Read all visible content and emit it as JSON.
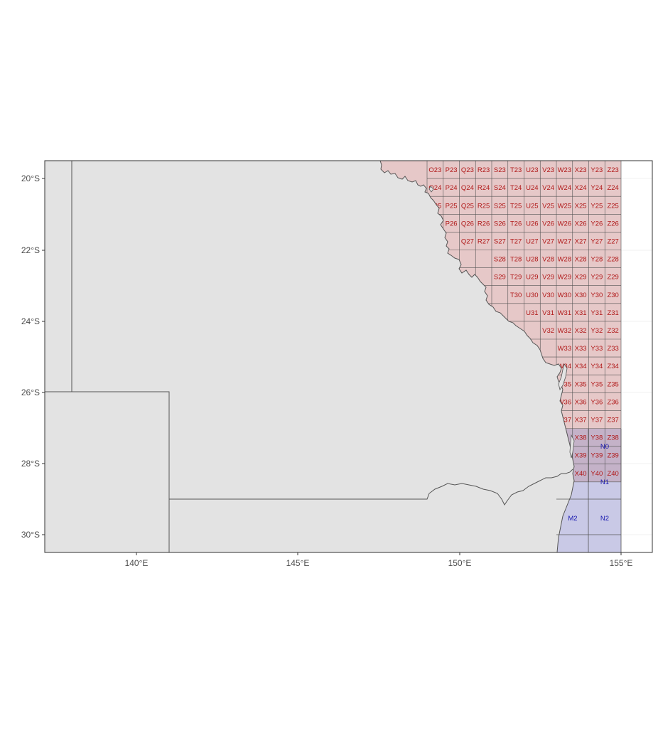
{
  "map": {
    "x_ticks": [
      "140°E",
      "145°E",
      "150°E",
      "155°E"
    ],
    "y_ticks": [
      "20°S",
      "22°S",
      "24°S",
      "26°S",
      "28°S",
      "30°S"
    ],
    "colors": {
      "land": "#e3e3e3",
      "coast": "#555555",
      "grid_red_fill": "#e6b8b8",
      "grid_red_text": "#b01818",
      "grid_blue_fill": "#b8b8e6",
      "grid_blue_text": "#1818b0",
      "panel_background": "#ffffff",
      "gridline": "#ebebeb"
    },
    "red_grid": {
      "columns": [
        "O",
        "P",
        "Q",
        "R",
        "S",
        "T",
        "U",
        "V",
        "W",
        "X",
        "Y",
        "Z"
      ],
      "rows": [
        23,
        24,
        25,
        26,
        27,
        28,
        29,
        30,
        31,
        32,
        33,
        34,
        35,
        36,
        37,
        38,
        39,
        40
      ],
      "row_label_start_col": {
        "23": "O",
        "24": "O",
        "25": "O",
        "26": "P",
        "27": "Q",
        "28": "S",
        "29": "S",
        "30": "T",
        "31": "U",
        "32": "V",
        "33": "W",
        "34": "W",
        "35": "W",
        "36": "W",
        "37": "W",
        "38": "X",
        "39": "X",
        "40": "X"
      }
    },
    "blue_grid": {
      "labels": [
        "N0",
        "N1",
        "M2",
        "N2"
      ]
    }
  }
}
